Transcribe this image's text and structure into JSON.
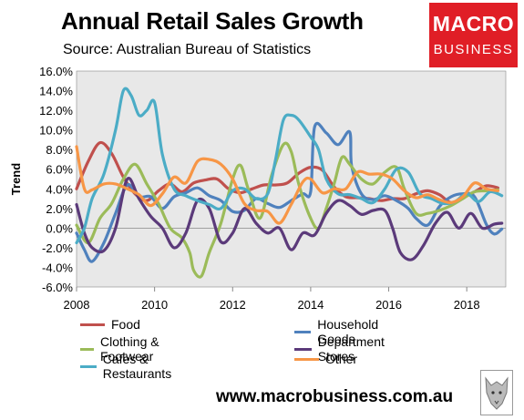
{
  "title": "Annual Retail Sales Growth",
  "source": "Source: Australian Bureau of Statistics",
  "logo": {
    "line1": "MACRO",
    "line2": "BUSINESS",
    "color": "#e01e26"
  },
  "footer": {
    "website": "www.macrobusiness.com.au"
  },
  "chart_data": {
    "type": "line",
    "ylabel": "Trend",
    "xlabel": "",
    "xlim": [
      2008,
      2019
    ],
    "ylim": [
      -6,
      16
    ],
    "yticks": [
      "-6.0%",
      "-4.0%",
      "-2.0%",
      "0.0%",
      "2.0%",
      "4.0%",
      "6.0%",
      "8.0%",
      "10.0%",
      "12.0%",
      "14.0%",
      "16.0%"
    ],
    "xticks": [
      "2008",
      "2010",
      "2012",
      "2014",
      "2016",
      "2018"
    ],
    "plot_background": "#e8e8e8",
    "grid": false,
    "legend_position": "bottom",
    "series": [
      {
        "name": "Food",
        "color": "#c0504d",
        "x": [
          2008.0,
          2008.3,
          2008.6,
          2008.9,
          2009.2,
          2009.5,
          2009.8,
          2010.1,
          2010.4,
          2010.7,
          2011.0,
          2011.3,
          2011.6,
          2011.9,
          2012.2,
          2012.5,
          2012.8,
          2013.1,
          2013.4,
          2013.7,
          2014.0,
          2014.3,
          2014.6,
          2014.9,
          2015.2,
          2015.5,
          2015.8,
          2016.1,
          2016.4,
          2016.7,
          2017.0,
          2017.3,
          2017.6,
          2017.9,
          2018.2,
          2018.5,
          2018.8
        ],
        "y": [
          4.0,
          6.8,
          8.7,
          7.6,
          5.2,
          3.5,
          2.8,
          3.8,
          4.5,
          3.7,
          4.6,
          4.9,
          5.0,
          4.0,
          3.6,
          4.0,
          4.4,
          4.4,
          4.6,
          5.6,
          6.2,
          5.9,
          4.2,
          3.2,
          3.1,
          3.0,
          2.8,
          3.0,
          3.0,
          3.5,
          3.8,
          3.4,
          2.6,
          3.1,
          3.7,
          4.3,
          4.1
        ]
      },
      {
        "name": "Household Goods",
        "color": "#4f81bd",
        "x": [
          2008.0,
          2008.2,
          2008.4,
          2008.7,
          2009.0,
          2009.3,
          2009.6,
          2009.9,
          2010.2,
          2010.5,
          2010.8,
          2011.1,
          2011.4,
          2011.7,
          2012.0,
          2012.3,
          2012.6,
          2012.9,
          2013.2,
          2013.5,
          2013.8,
          2014.0,
          2014.1,
          2014.4,
          2014.7,
          2015.0,
          2015.05,
          2015.3,
          2015.6,
          2015.9,
          2016.2,
          2016.5,
          2016.7,
          2017.0,
          2017.3,
          2017.6,
          2017.9,
          2018.2,
          2018.5,
          2018.7,
          2018.9
        ],
        "y": [
          -0.5,
          -2.2,
          -3.4,
          -1.5,
          1.5,
          4.4,
          3.2,
          3.2,
          2.0,
          3.2,
          3.6,
          4.1,
          3.3,
          2.8,
          1.7,
          1.8,
          3.0,
          2.5,
          2.1,
          2.8,
          3.5,
          3.7,
          10.3,
          9.7,
          8.5,
          9.8,
          6.3,
          3.5,
          2.9,
          3.3,
          2.8,
          2.0,
          1.0,
          0.3,
          2.2,
          3.2,
          3.5,
          3.2,
          0.4,
          -0.6,
          -0.1
        ]
      },
      {
        "name": "Clothing & Footwear",
        "color": "#9bbb59",
        "x": [
          2008.0,
          2008.3,
          2008.6,
          2008.9,
          2009.2,
          2009.5,
          2009.8,
          2010.1,
          2010.4,
          2010.7,
          2010.9,
          2011.0,
          2011.2,
          2011.4,
          2011.7,
          2012.0,
          2012.2,
          2012.4,
          2012.7,
          2013.0,
          2013.3,
          2013.5,
          2013.7,
          2014.0,
          2014.2,
          2014.4,
          2014.6,
          2014.8,
          2015.0,
          2015.3,
          2015.6,
          2015.9,
          2016.2,
          2016.4,
          2016.7,
          2017.0,
          2017.3,
          2017.6,
          2017.9,
          2018.2,
          2018.5,
          2018.8
        ],
        "y": [
          0.3,
          -1.5,
          1.0,
          2.5,
          5.0,
          6.5,
          4.5,
          2.5,
          0.0,
          -1.0,
          -2.5,
          -4.3,
          -4.9,
          -2.5,
          0.5,
          5.0,
          6.4,
          4.0,
          1.0,
          5.4,
          8.5,
          7.8,
          4.4,
          1.0,
          0.0,
          2.0,
          4.5,
          7.2,
          6.5,
          5.0,
          4.5,
          5.7,
          6.2,
          4.0,
          1.5,
          1.5,
          1.8,
          2.3,
          3.0,
          3.7,
          3.8,
          3.9
        ]
      },
      {
        "name": "Department Stores",
        "color": "#5b3a7a",
        "x": [
          2008.0,
          2008.2,
          2008.4,
          2008.7,
          2009.0,
          2009.3,
          2009.6,
          2009.9,
          2010.2,
          2010.5,
          2010.8,
          2011.1,
          2011.4,
          2011.7,
          2012.0,
          2012.3,
          2012.6,
          2012.9,
          2013.2,
          2013.5,
          2013.8,
          2014.1,
          2014.4,
          2014.7,
          2015.0,
          2015.3,
          2015.6,
          2015.9,
          2016.1,
          2016.3,
          2016.6,
          2016.9,
          2017.2,
          2017.5,
          2017.8,
          2018.1,
          2018.4,
          2018.7,
          2018.9
        ],
        "y": [
          2.4,
          -0.5,
          -2.0,
          -2.3,
          0.0,
          5.0,
          3.0,
          1.2,
          0.0,
          -2.0,
          -0.5,
          2.8,
          2.0,
          -1.4,
          -0.5,
          2.0,
          0.5,
          -0.5,
          0.0,
          -2.2,
          -0.5,
          -0.7,
          1.5,
          2.8,
          2.3,
          1.4,
          1.8,
          1.8,
          0.0,
          -2.5,
          -3.2,
          -1.7,
          0.5,
          1.6,
          0.0,
          1.5,
          0.0,
          0.4,
          0.5
        ]
      },
      {
        "name": "Cafes & Restaurants",
        "color": "#4bacc6",
        "x": [
          2008.0,
          2008.2,
          2008.4,
          2008.7,
          2009.0,
          2009.2,
          2009.4,
          2009.6,
          2009.8,
          2010.0,
          2010.2,
          2010.5,
          2010.8,
          2011.1,
          2011.4,
          2011.7,
          2012.0,
          2012.3,
          2012.6,
          2012.9,
          2013.1,
          2013.3,
          2013.5,
          2013.7,
          2014.0,
          2014.2,
          2014.4,
          2014.7,
          2015.0,
          2015.3,
          2015.6,
          2015.9,
          2016.2,
          2016.5,
          2016.8,
          2017.1,
          2017.4,
          2017.7,
          2018.0,
          2018.3,
          2018.6,
          2018.9
        ],
        "y": [
          -1.5,
          0.0,
          3.0,
          5.5,
          10.0,
          14.0,
          13.5,
          11.5,
          12.0,
          12.8,
          7.5,
          4.0,
          3.3,
          2.8,
          2.4,
          2.0,
          3.8,
          4.0,
          3.0,
          3.5,
          7.0,
          11.0,
          11.5,
          11.0,
          9.3,
          8.0,
          5.0,
          3.5,
          3.4,
          3.0,
          2.6,
          4.0,
          6.0,
          5.7,
          3.5,
          3.0,
          2.5,
          2.7,
          3.5,
          2.7,
          3.7,
          3.3
        ]
      },
      {
        "name": "Other",
        "color": "#f79646",
        "x": [
          2008.0,
          2008.2,
          2008.4,
          2008.7,
          2009.0,
          2009.3,
          2009.6,
          2009.9,
          2010.2,
          2010.5,
          2010.8,
          2011.1,
          2011.4,
          2011.7,
          2012.0,
          2012.3,
          2012.6,
          2012.9,
          2013.2,
          2013.5,
          2013.8,
          2014.0,
          2014.3,
          2014.6,
          2014.9,
          2015.2,
          2015.5,
          2015.8,
          2016.1,
          2016.4,
          2016.7,
          2017.0,
          2017.3,
          2017.6,
          2017.9,
          2018.2,
          2018.5,
          2018.8
        ],
        "y": [
          8.3,
          4.0,
          3.9,
          4.5,
          4.5,
          4.0,
          3.4,
          2.3,
          3.5,
          5.2,
          4.6,
          6.8,
          7.0,
          6.5,
          5.0,
          2.5,
          1.8,
          1.7,
          0.5,
          2.4,
          4.7,
          5.0,
          3.6,
          4.0,
          4.0,
          5.7,
          5.5,
          5.5,
          5.0,
          3.8,
          3.1,
          3.4,
          2.9,
          2.6,
          3.2,
          4.6,
          4.0,
          3.8
        ]
      }
    ]
  }
}
